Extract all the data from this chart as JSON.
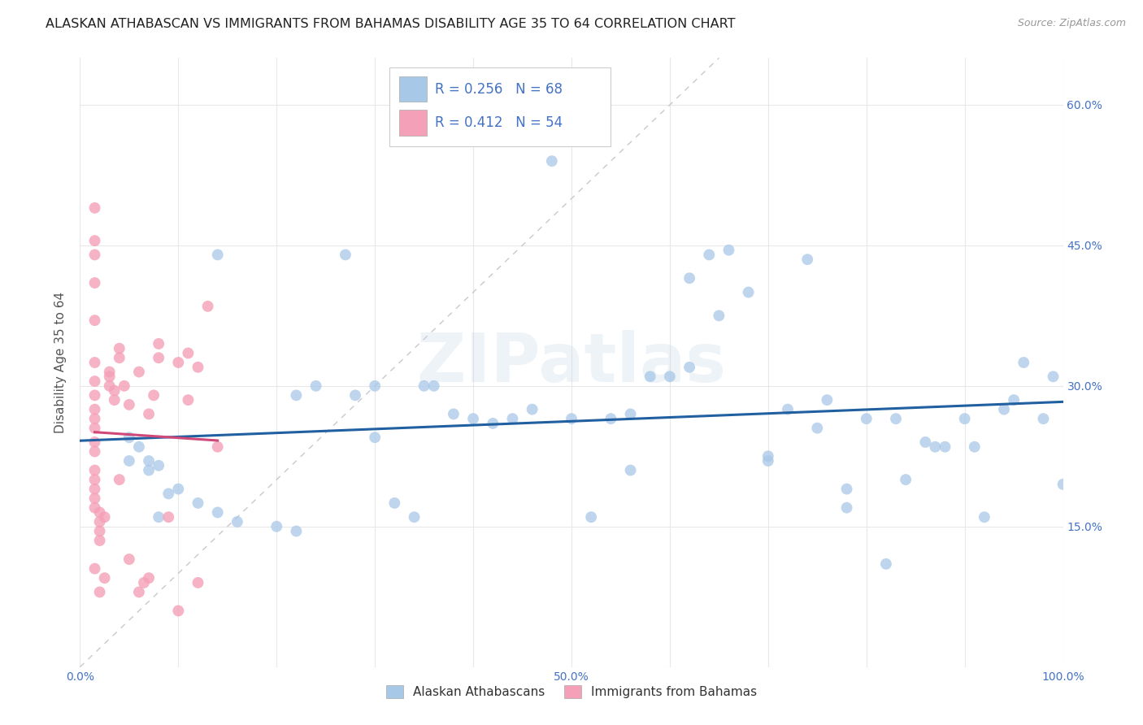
{
  "title": "ALASKAN ATHABASCAN VS IMMIGRANTS FROM BAHAMAS DISABILITY AGE 35 TO 64 CORRELATION CHART",
  "source": "Source: ZipAtlas.com",
  "ylabel": "Disability Age 35 to 64",
  "xlim": [
    0.0,
    1.0
  ],
  "ylim": [
    0.0,
    0.65
  ],
  "xticks": [
    0.0,
    0.1,
    0.2,
    0.3,
    0.4,
    0.5,
    0.6,
    0.7,
    0.8,
    0.9,
    1.0
  ],
  "xticklabels": [
    "0.0%",
    "",
    "",
    "",
    "",
    "50.0%",
    "",
    "",
    "",
    "",
    "100.0%"
  ],
  "yticks": [
    0.0,
    0.15,
    0.3,
    0.45,
    0.6
  ],
  "yticklabels_right": [
    "",
    "15.0%",
    "30.0%",
    "45.0%",
    "60.0%"
  ],
  "blue_color": "#a8c8e8",
  "pink_color": "#f4a0b8",
  "blue_line_color": "#2160a0",
  "pink_line_color": "#d04878",
  "diagonal_color": "#c8c8d0",
  "watermark": "ZIPatlas",
  "blue_R": 0.256,
  "pink_R": 0.412,
  "blue_N": 68,
  "pink_N": 54,
  "blue_scatter_x": [
    0.48,
    0.14,
    0.27,
    0.05,
    0.06,
    0.07,
    0.08,
    0.09,
    0.1,
    0.12,
    0.14,
    0.16,
    0.2,
    0.22,
    0.24,
    0.28,
    0.3,
    0.32,
    0.34,
    0.35,
    0.38,
    0.4,
    0.42,
    0.44,
    0.46,
    0.5,
    0.52,
    0.54,
    0.56,
    0.58,
    0.6,
    0.62,
    0.64,
    0.66,
    0.68,
    0.7,
    0.72,
    0.74,
    0.76,
    0.78,
    0.8,
    0.82,
    0.84,
    0.86,
    0.88,
    0.9,
    0.92,
    0.94,
    0.96,
    0.98,
    1.0,
    0.62,
    0.65,
    0.7,
    0.75,
    0.78,
    0.83,
    0.87,
    0.91,
    0.95,
    0.99,
    0.05,
    0.07,
    0.08,
    0.22,
    0.3,
    0.36,
    0.56
  ],
  "blue_scatter_y": [
    0.54,
    0.44,
    0.44,
    0.245,
    0.235,
    0.22,
    0.215,
    0.185,
    0.19,
    0.175,
    0.165,
    0.155,
    0.15,
    0.145,
    0.3,
    0.29,
    0.245,
    0.175,
    0.16,
    0.3,
    0.27,
    0.265,
    0.26,
    0.265,
    0.275,
    0.265,
    0.16,
    0.265,
    0.21,
    0.31,
    0.31,
    0.32,
    0.44,
    0.445,
    0.4,
    0.22,
    0.275,
    0.435,
    0.285,
    0.19,
    0.265,
    0.11,
    0.2,
    0.24,
    0.235,
    0.265,
    0.16,
    0.275,
    0.325,
    0.265,
    0.195,
    0.415,
    0.375,
    0.225,
    0.255,
    0.17,
    0.265,
    0.235,
    0.235,
    0.285,
    0.31,
    0.22,
    0.21,
    0.16,
    0.29,
    0.3,
    0.3,
    0.27
  ],
  "pink_scatter_x": [
    0.015,
    0.015,
    0.015,
    0.015,
    0.015,
    0.015,
    0.015,
    0.015,
    0.015,
    0.015,
    0.015,
    0.015,
    0.015,
    0.015,
    0.015,
    0.015,
    0.015,
    0.015,
    0.02,
    0.02,
    0.02,
    0.02,
    0.02,
    0.025,
    0.025,
    0.03,
    0.03,
    0.03,
    0.035,
    0.035,
    0.04,
    0.04,
    0.04,
    0.045,
    0.05,
    0.05,
    0.06,
    0.06,
    0.065,
    0.07,
    0.07,
    0.075,
    0.08,
    0.08,
    0.09,
    0.1,
    0.1,
    0.11,
    0.11,
    0.12,
    0.12,
    0.13,
    0.14,
    0.015
  ],
  "pink_scatter_y": [
    0.49,
    0.455,
    0.44,
    0.41,
    0.37,
    0.325,
    0.305,
    0.29,
    0.275,
    0.265,
    0.255,
    0.24,
    0.23,
    0.21,
    0.2,
    0.19,
    0.18,
    0.17,
    0.165,
    0.155,
    0.145,
    0.135,
    0.08,
    0.16,
    0.095,
    0.315,
    0.31,
    0.3,
    0.295,
    0.285,
    0.34,
    0.33,
    0.2,
    0.3,
    0.28,
    0.115,
    0.315,
    0.08,
    0.09,
    0.095,
    0.27,
    0.29,
    0.345,
    0.33,
    0.16,
    0.325,
    0.06,
    0.285,
    0.335,
    0.09,
    0.32,
    0.385,
    0.235,
    0.105
  ],
  "background_color": "#ffffff",
  "grid_color": "#e8e8e8",
  "title_fontsize": 11.5,
  "axis_label_fontsize": 11,
  "tick_fontsize": 10,
  "tick_color": "#4472c4",
  "legend_text_color": "#4472c4",
  "legend_label_color": "#333333"
}
